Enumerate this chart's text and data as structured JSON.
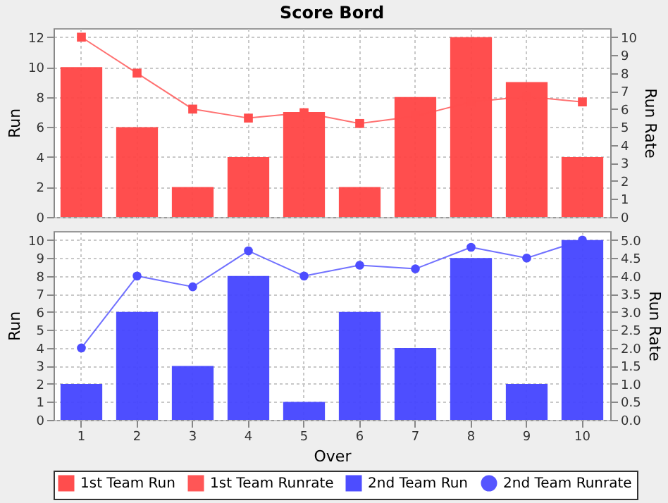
{
  "chart_data": [
    {
      "type": "bar",
      "title": "Score Bord",
      "ylabel": "Run",
      "y2label": "Run Rate",
      "categories": [
        "1",
        "2",
        "3",
        "4",
        "5",
        "6",
        "7",
        "8",
        "9",
        "10"
      ],
      "series": [
        {
          "name": "1st Team Run",
          "color": "#ff4444",
          "values": [
            10,
            6,
            2,
            4,
            7,
            2,
            8,
            12,
            9,
            4
          ]
        },
        {
          "name": "1st Team Runrate",
          "type": "line",
          "axis": "y2",
          "marker": "square",
          "color": "#ff4d4d",
          "values": [
            10,
            8,
            6,
            5.5,
            5.8,
            5.2,
            5.6,
            6.4,
            6.7,
            6.4
          ]
        }
      ],
      "ylim": [
        0,
        12.6
      ],
      "yticks": [
        0,
        2,
        4,
        6,
        8,
        10,
        12
      ],
      "y2lim": [
        0,
        10.5
      ],
      "y2ticks": [
        0,
        1,
        2,
        3,
        4,
        5,
        6,
        7,
        8,
        9,
        10
      ],
      "grid": true,
      "tick_labels": "y",
      "legend": "bottom"
    },
    {
      "type": "bar",
      "xlabel": "Over",
      "ylabel": "Run",
      "y2label": "Run Rate",
      "categories": [
        "1",
        "2",
        "3",
        "4",
        "5",
        "6",
        "7",
        "8",
        "9",
        "10"
      ],
      "series": [
        {
          "name": "2nd Team Run",
          "color": "#4444ff",
          "values": [
            2,
            6,
            3,
            8,
            1,
            6,
            4,
            9,
            2,
            10
          ]
        },
        {
          "name": "2nd Team Runrate",
          "type": "line",
          "axis": "y2",
          "marker": "circle",
          "color": "#4d4dff",
          "values": [
            2.0,
            4.0,
            3.7,
            4.7,
            4.0,
            4.3,
            4.2,
            4.8,
            4.5,
            5.0
          ]
        }
      ],
      "ylim": [
        0,
        10.5
      ],
      "yticks": [
        0,
        1,
        2,
        3,
        4,
        5,
        6,
        7,
        8,
        9,
        10
      ],
      "y2lim": [
        0,
        5.25
      ],
      "y2ticks": [
        {
          "value": 0,
          "label": "0.0"
        },
        {
          "value": 0.5,
          "label": "0.5"
        },
        {
          "value": 1,
          "label": "1.0"
        },
        {
          "value": 1.5,
          "label": "1.5"
        },
        {
          "value": 2,
          "label": "2.0"
        },
        {
          "value": 2.5,
          "label": "2.5"
        },
        {
          "value": 3,
          "label": "3.0"
        },
        {
          "value": 3.5,
          "label": "3.5"
        },
        {
          "value": 4,
          "label": "4.0"
        },
        {
          "value": 4.5,
          "label": "4.5"
        },
        {
          "value": 5,
          "label": "5.0"
        }
      ],
      "grid": true,
      "legend": "bottom"
    }
  ]
}
